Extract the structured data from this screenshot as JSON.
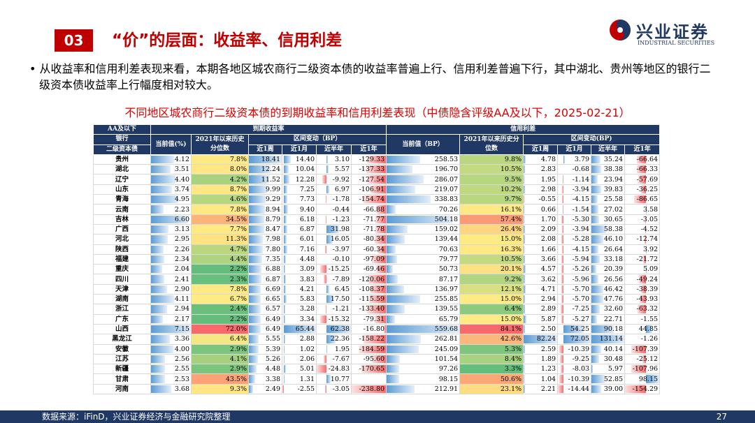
{
  "header": {
    "section_number": "03",
    "title": "“价”的层面：收益率、信用利差",
    "logo_name": "兴业证券",
    "logo_subtitle": "INDUSTRIAL SECURITIES"
  },
  "bullet": "从收益率和信用利差表现来看，本期各地区城农商行二级资本债的收益率普遍上行、信用利差普遍下行，其中湖北、贵州等地区的银行二级资本债收益率上行幅度相对较大。",
  "table": {
    "title": "不同地区城农商行二级资本债的到期收益率和信用利差表现（中债隐含评级AA及以下，2025-02-21）",
    "corner": [
      "AA及以下",
      "银行",
      "二级资本债"
    ],
    "groups": [
      "到期收益率",
      "信用利差"
    ],
    "yield_headers": [
      "当前值(%)",
      "2021年以来历史分位数",
      "区间变动（BP）"
    ],
    "spread_headers": [
      "当前值（BP）",
      "2021年以来历史分位数",
      "区间变动(BP)"
    ],
    "periods": [
      "近1周",
      "近1月",
      "近半年",
      "近1年",
      "近1周",
      "近1月",
      "近半年",
      "近1年"
    ],
    "rows": [
      [
        "贵州",
        "4.12",
        "7.8%",
        "18.41",
        "14.40",
        "3.10",
        "-129.33",
        "258.53",
        "9.8%",
        "4.78",
        "3.79",
        "35.24",
        "-66.64"
      ],
      [
        "湖北",
        "3.51",
        "8.0%",
        "12.24",
        "10.04",
        "5.57",
        "-137.33",
        "196.70",
        "10.5%",
        "2.83",
        "-0.68",
        "38.38",
        "-66.33"
      ],
      [
        "辽宁",
        "4.40",
        "4.2%",
        "11.52",
        "12.28",
        "-9.92",
        "-127.54",
        "286.07",
        "9.5%",
        "1.95",
        "-1.14",
        "23.94",
        "-57.69"
      ],
      [
        "山东",
        "3.74",
        "8.7%",
        "9.99",
        "7.25",
        "6.97",
        "-106.91",
        "219.07",
        "10.2%",
        "2.98",
        "-3.94",
        "39.83",
        "-36.25"
      ],
      [
        "青海",
        "4.95",
        "4.6%",
        "9.29",
        "7.73",
        "-1.78",
        "-154.74",
        "338.83",
        "9.7%",
        "-0.55",
        "-4.15",
        "25.58",
        "-86.65"
      ],
      [
        "云南",
        "2.23",
        "7.8%",
        "8.94",
        "9.40",
        "-0.44",
        "-66.88",
        "70.26",
        "16.1%",
        "0.66",
        "-1.54",
        "27.02",
        "3.58"
      ],
      [
        "吉林",
        "6.60",
        "34.5%",
        "8.79",
        "6.18",
        "-1.23",
        "-71.77",
        "504.18",
        "57.4%",
        "1.70",
        "-5.30",
        "30.65",
        "-3.05"
      ],
      [
        "广西",
        "3.13",
        "7.7%",
        "8.47",
        "6.87",
        "31.98",
        "-71.78",
        "159.02",
        "26.4%",
        "2.09",
        "-3.94",
        "58.38",
        "-4.52"
      ],
      [
        "河北",
        "2.95",
        "11.3%",
        "7.98",
        "6.01",
        "16.05",
        "-80.34",
        "139.44",
        "15.0%",
        "2.08",
        "-5.28",
        "46.10",
        "-12.74"
      ],
      [
        "陕西",
        "2.26",
        "4.7%",
        "7.80",
        "7.16",
        "-3.97",
        "-60.34",
        "70.63",
        "16.3%",
        "1.66",
        "-4.15",
        "26.64",
        "3.92"
      ],
      [
        "福建",
        "2.34",
        "4.4%",
        "7.35",
        "4.48",
        "-0.10",
        "-97.09",
        "79.77",
        "10.5%",
        "3.66",
        "-5.94",
        "33.18",
        "-21.72"
      ],
      [
        "重庆",
        "2.04",
        "2.2%",
        "6.88",
        "3.09",
        "-15.25",
        "-69.46",
        "50.73",
        "20.1%",
        "4.57",
        "-5.26",
        "20.39",
        "5.09"
      ],
      [
        "四川",
        "2.41",
        "2.3%",
        "6.87",
        "3.83",
        "-7.89",
        "-120.06",
        "87.17",
        "9.2%",
        "3.62",
        "-5.96",
        "26.56",
        "-49.24"
      ],
      [
        "天津",
        "2.90",
        "7.8%",
        "6.69",
        "4.21",
        "6.45",
        "-108.37",
        "136.97",
        "12.1%",
        "4.71",
        "-5.70",
        "46.42",
        "-38.39"
      ],
      [
        "湖南",
        "4.11",
        "6.7%",
        "6.65",
        "5.83",
        "17.50",
        "-115.59",
        "255.85",
        "15.0%",
        "2.94",
        "-5.70",
        "47.76",
        "-43.93"
      ],
      [
        "浙江",
        "2.94",
        "2.4%",
        "6.57",
        "3.28",
        "-1.21",
        "-133.40",
        "139.55",
        "6.4%",
        "2.89",
        "-7.25",
        "32.60",
        "-63.32"
      ],
      [
        "广东",
        "2.17",
        "2.2%",
        "6.49",
        "3.34",
        "-15.32",
        "-79.31",
        "65.79",
        "15.0%",
        "5.87",
        "-5.27",
        "22.71",
        "-1.55"
      ],
      [
        "山西",
        "7.15",
        "72.0%",
        "6.49",
        "65.44",
        "62.38",
        "-16.80",
        "559.68",
        "84.1%",
        "2.50",
        "54.25",
        "90.18",
        "44.85"
      ],
      [
        "黑龙江",
        "3.36",
        "6.4%",
        "5.55",
        "2.88",
        "22.36",
        "-158.22",
        "262.81",
        "42.6%",
        "82.24",
        "72.05",
        "131.14",
        "-1.26"
      ],
      [
        "安徽",
        "4.00",
        "2.9%",
        "5.39",
        "1.02",
        "1.95",
        "-184.59",
        "245.09",
        "5.3%",
        "2.59",
        "-10.39",
        "40.14",
        "-107.39"
      ],
      [
        "江苏",
        "2.56",
        "4.1%",
        "5.26",
        "2.06",
        "-7.67",
        "-95.60",
        "101.54",
        "8.4%",
        "1.89",
        "-9.25",
        "30.48",
        "-25.12"
      ],
      [
        "新疆",
        "2.55",
        "2.9%",
        "4.48",
        "5.01",
        "-24.83",
        "-170.65",
        "97.26",
        "3.3%",
        "1.23",
        "-8.03",
        "5.97",
        "-107.96"
      ],
      [
        "甘肃",
        "2.53",
        "43.5%",
        "3.38",
        "1.31",
        "10.77",
        null,
        "98.15",
        "50.6%",
        "1.04",
        "-10.39",
        "52.85",
        "98.15"
      ],
      [
        "河南",
        "3.68",
        "9.3%",
        "2.49",
        "-2.55",
        "-3.05",
        "-238.80",
        "212.91",
        "23.1%",
        "2.21",
        "-14.44",
        "39.00",
        "-154.29"
      ]
    ]
  },
  "footer": {
    "source": "数据来源：iFinD，兴业证券经济与金融研究院整理",
    "page": "27"
  }
}
